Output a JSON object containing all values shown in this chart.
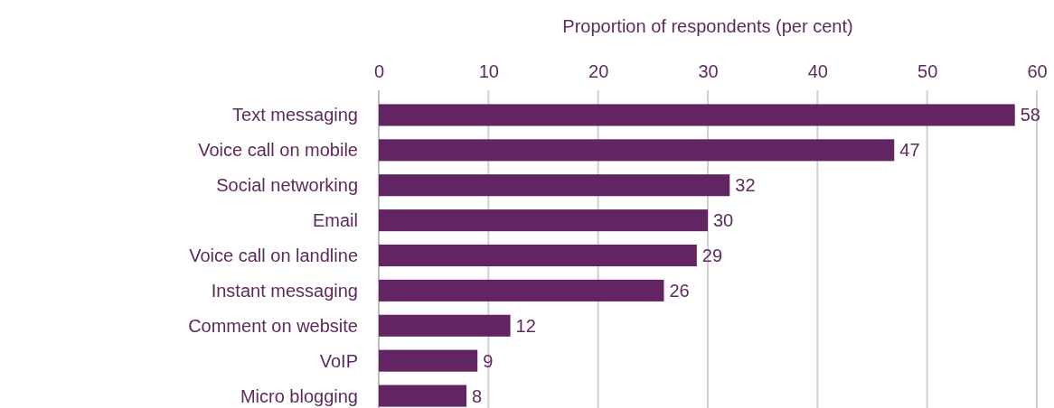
{
  "chart_data": {
    "type": "bar",
    "orientation": "horizontal",
    "xlabel": "Proportion of respondents (per cent)",
    "categories": [
      "Text messaging",
      "Voice call on mobile",
      "Social networking",
      "Email",
      "Voice call on landline",
      "Instant messaging",
      "Comment on website",
      "VoIP",
      "Micro blogging"
    ],
    "values": [
      58,
      47,
      32,
      30,
      29,
      26,
      12,
      9,
      8
    ],
    "color": "#632463",
    "xlim": [
      0,
      60
    ],
    "xticks": [
      0,
      10,
      20,
      30,
      40,
      50,
      60
    ],
    "grid": "x",
    "data_labels": true
  }
}
